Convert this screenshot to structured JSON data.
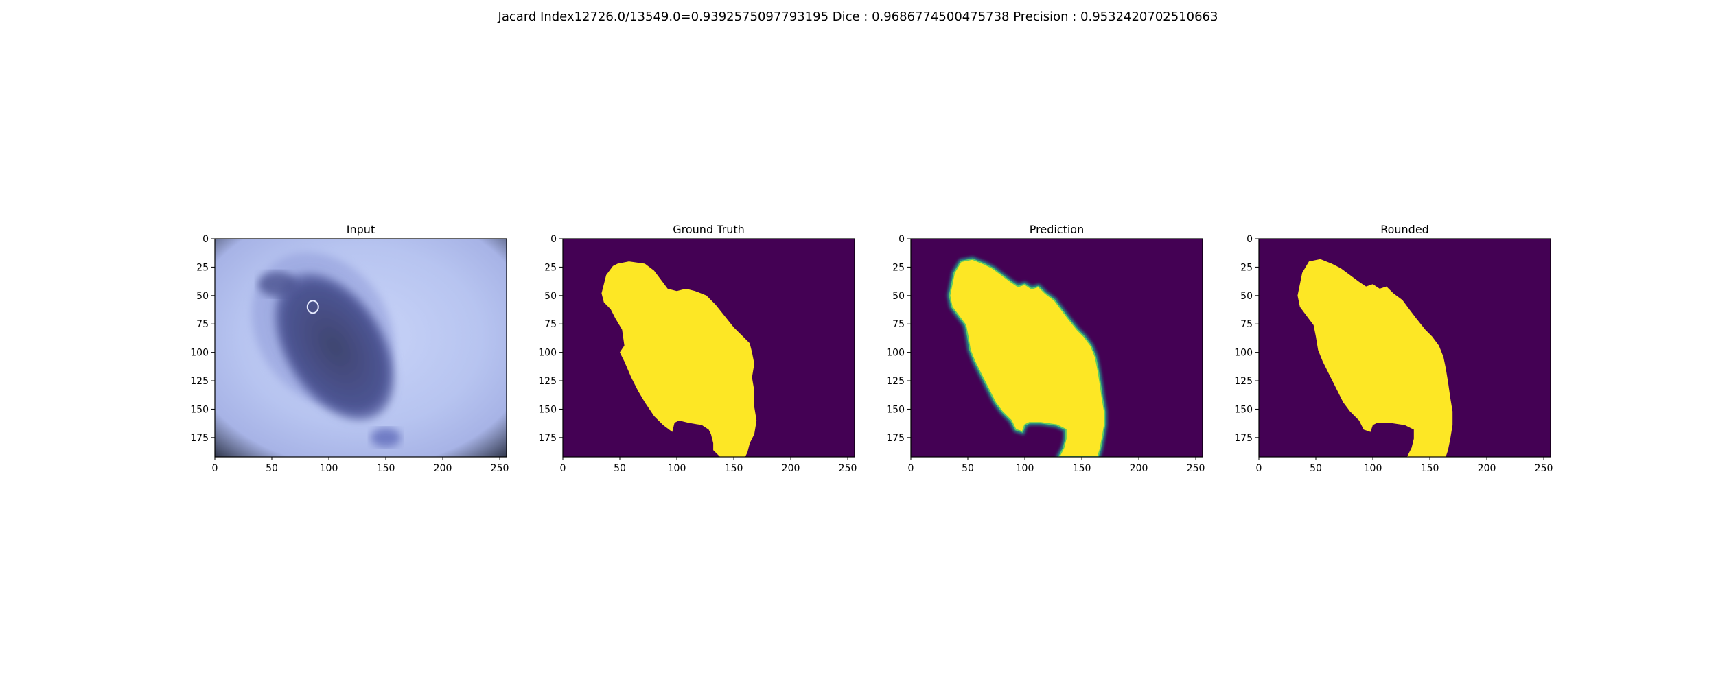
{
  "suptitle": "Jacard Index12726.0/13549.0=0.9392575097793195 Dice : 0.9686774500475738 Precision : 0.9532420702510663",
  "colors": {
    "background_class": "#440154",
    "foreground_class": "#fde725",
    "edge_teal": "#21918c",
    "edge_green": "#5ec962",
    "input_light": "#b9c6f3",
    "input_lesion": "#4a4f8c"
  },
  "chart_data": [
    {
      "type": "heatmap",
      "title": "Input",
      "xlim": [
        0,
        256
      ],
      "ylim": [
        192,
        0
      ],
      "xticks": [
        0,
        50,
        100,
        150,
        200,
        250
      ],
      "yticks": [
        0,
        25,
        50,
        75,
        100,
        125,
        150,
        175
      ],
      "image": "dermoscopy-photo"
    },
    {
      "type": "heatmap",
      "title": "Ground Truth",
      "xlim": [
        0,
        256
      ],
      "ylim": [
        192,
        0
      ],
      "xticks": [
        0,
        50,
        100,
        150,
        200,
        250
      ],
      "yticks": [
        0,
        25,
        50,
        75,
        100,
        125,
        150,
        175
      ],
      "mask_outline": [
        [
          48,
          22
        ],
        [
          58,
          20
        ],
        [
          72,
          22
        ],
        [
          80,
          28
        ],
        [
          86,
          36
        ],
        [
          92,
          44
        ],
        [
          100,
          46
        ],
        [
          108,
          44
        ],
        [
          116,
          46
        ],
        [
          126,
          50
        ],
        [
          134,
          58
        ],
        [
          142,
          68
        ],
        [
          150,
          78
        ],
        [
          158,
          86
        ],
        [
          164,
          92
        ],
        [
          166,
          100
        ],
        [
          168,
          110
        ],
        [
          166,
          122
        ],
        [
          168,
          134
        ],
        [
          168,
          148
        ],
        [
          170,
          160
        ],
        [
          168,
          172
        ],
        [
          164,
          180
        ],
        [
          162,
          188
        ],
        [
          160,
          192
        ],
        [
          138,
          192
        ],
        [
          132,
          186
        ],
        [
          132,
          180
        ],
        [
          130,
          172
        ],
        [
          128,
          168
        ],
        [
          122,
          164
        ],
        [
          110,
          162
        ],
        [
          102,
          160
        ],
        [
          98,
          162
        ],
        [
          96,
          170
        ],
        [
          88,
          164
        ],
        [
          80,
          156
        ],
        [
          72,
          144
        ],
        [
          66,
          134
        ],
        [
          60,
          122
        ],
        [
          54,
          108
        ],
        [
          50,
          100
        ],
        [
          54,
          94
        ],
        [
          52,
          80
        ],
        [
          46,
          70
        ],
        [
          42,
          62
        ],
        [
          36,
          56
        ],
        [
          34,
          48
        ],
        [
          36,
          40
        ],
        [
          38,
          32
        ],
        [
          44,
          24
        ]
      ]
    },
    {
      "type": "heatmap",
      "title": "Prediction",
      "xlim": [
        0,
        256
      ],
      "ylim": [
        192,
        0
      ],
      "xticks": [
        0,
        50,
        100,
        150,
        200,
        250
      ],
      "yticks": [
        0,
        25,
        50,
        75,
        100,
        125,
        150,
        175
      ],
      "mask_outline": [
        [
          44,
          20
        ],
        [
          54,
          18
        ],
        [
          64,
          22
        ],
        [
          72,
          26
        ],
        [
          80,
          32
        ],
        [
          88,
          38
        ],
        [
          94,
          42
        ],
        [
          100,
          40
        ],
        [
          106,
          44
        ],
        [
          112,
          42
        ],
        [
          118,
          48
        ],
        [
          126,
          54
        ],
        [
          132,
          62
        ],
        [
          138,
          70
        ],
        [
          146,
          80
        ],
        [
          152,
          86
        ],
        [
          158,
          94
        ],
        [
          162,
          104
        ],
        [
          164,
          114
        ],
        [
          166,
          126
        ],
        [
          168,
          140
        ],
        [
          170,
          152
        ],
        [
          170,
          164
        ],
        [
          168,
          176
        ],
        [
          166,
          186
        ],
        [
          164,
          192
        ],
        [
          130,
          192
        ],
        [
          134,
          184
        ],
        [
          136,
          176
        ],
        [
          136,
          168
        ],
        [
          128,
          164
        ],
        [
          114,
          162
        ],
        [
          104,
          162
        ],
        [
          100,
          164
        ],
        [
          98,
          170
        ],
        [
          92,
          168
        ],
        [
          88,
          160
        ],
        [
          80,
          152
        ],
        [
          74,
          144
        ],
        [
          68,
          132
        ],
        [
          62,
          120
        ],
        [
          56,
          108
        ],
        [
          52,
          98
        ],
        [
          50,
          86
        ],
        [
          48,
          76
        ],
        [
          42,
          68
        ],
        [
          36,
          60
        ],
        [
          34,
          50
        ],
        [
          36,
          40
        ],
        [
          38,
          30
        ]
      ]
    },
    {
      "type": "heatmap",
      "title": "Rounded",
      "xlim": [
        0,
        256
      ],
      "ylim": [
        192,
        0
      ],
      "xticks": [
        0,
        50,
        100,
        150,
        200,
        250
      ],
      "yticks": [
        0,
        25,
        50,
        75,
        100,
        125,
        150,
        175
      ],
      "mask_outline": [
        [
          44,
          20
        ],
        [
          54,
          18
        ],
        [
          64,
          22
        ],
        [
          72,
          26
        ],
        [
          80,
          32
        ],
        [
          88,
          38
        ],
        [
          94,
          42
        ],
        [
          100,
          40
        ],
        [
          106,
          44
        ],
        [
          112,
          42
        ],
        [
          118,
          48
        ],
        [
          126,
          54
        ],
        [
          132,
          62
        ],
        [
          138,
          70
        ],
        [
          146,
          80
        ],
        [
          152,
          86
        ],
        [
          158,
          94
        ],
        [
          162,
          104
        ],
        [
          164,
          114
        ],
        [
          166,
          126
        ],
        [
          168,
          140
        ],
        [
          170,
          152
        ],
        [
          170,
          164
        ],
        [
          168,
          176
        ],
        [
          166,
          186
        ],
        [
          164,
          192
        ],
        [
          130,
          192
        ],
        [
          134,
          184
        ],
        [
          136,
          176
        ],
        [
          136,
          168
        ],
        [
          128,
          164
        ],
        [
          114,
          162
        ],
        [
          104,
          162
        ],
        [
          100,
          164
        ],
        [
          98,
          170
        ],
        [
          92,
          168
        ],
        [
          88,
          160
        ],
        [
          80,
          152
        ],
        [
          74,
          144
        ],
        [
          68,
          132
        ],
        [
          62,
          120
        ],
        [
          56,
          108
        ],
        [
          52,
          98
        ],
        [
          50,
          86
        ],
        [
          48,
          76
        ],
        [
          42,
          68
        ],
        [
          36,
          60
        ],
        [
          34,
          50
        ],
        [
          36,
          40
        ],
        [
          38,
          30
        ]
      ]
    }
  ]
}
